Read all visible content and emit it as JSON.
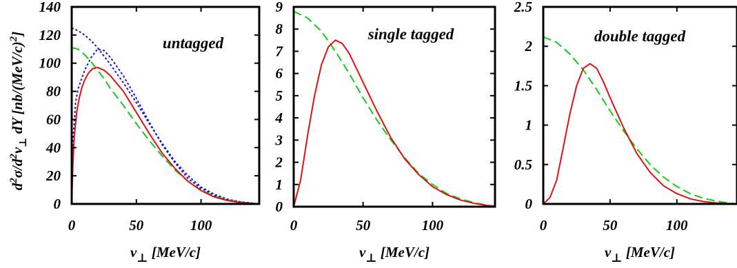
{
  "colors": {
    "red": "#dd1111",
    "green": "#11cc11",
    "blue": "#1111dd"
  },
  "chart_data": [
    {
      "type": "line",
      "panel_label": "untagged",
      "xlabel": "v⊥ [MeV/c]",
      "ylabel": "d²σ/d²v⊥ dY [nb/(MeV/c)²]",
      "xlim": [
        0,
        145
      ],
      "ylim": [
        0,
        140
      ],
      "x_ticks": [
        0,
        50,
        100
      ],
      "y_ticks": [
        0,
        20,
        40,
        60,
        80,
        100,
        120,
        140
      ],
      "series": [
        {
          "color": "blue",
          "style": "dotted",
          "x": [
            0,
            1,
            3,
            5,
            10,
            15,
            20,
            25,
            30,
            40,
            50,
            60,
            70,
            80,
            90,
            100,
            110,
            120,
            130,
            140,
            145
          ],
          "y": [
            0,
            45,
            72,
            82,
            95,
            104,
            110,
            109,
            104,
            91,
            75,
            58,
            42,
            29,
            18,
            11,
            6,
            3,
            1.5,
            0.5,
            0
          ]
        },
        {
          "color": "blue",
          "style": "dotted",
          "x": [
            0,
            5,
            10,
            15,
            20,
            25,
            30,
            40,
            50,
            60,
            70,
            80,
            90,
            100,
            110,
            120,
            130,
            140,
            145
          ],
          "y": [
            125,
            123,
            120,
            116,
            111,
            105,
            99,
            86,
            72,
            57,
            43,
            30,
            20,
            12,
            7,
            3.5,
            1.5,
            0.5,
            0
          ]
        },
        {
          "color": "green",
          "style": "dashed",
          "x": [
            0,
            5,
            10,
            15,
            20,
            25,
            30,
            40,
            50,
            60,
            70,
            80,
            90,
            100,
            110,
            120,
            130,
            140,
            145
          ],
          "y": [
            111,
            110,
            106,
            101,
            95,
            89,
            82,
            70,
            57,
            45,
            34,
            24,
            16,
            10,
            5.5,
            2.8,
            1.2,
            0.4,
            0
          ]
        },
        {
          "color": "red",
          "style": "solid",
          "x": [
            0,
            1,
            2,
            4,
            6,
            8,
            10,
            13,
            16,
            20,
            25,
            30,
            40,
            50,
            60,
            70,
            80,
            90,
            100,
            110,
            120,
            130,
            140,
            145
          ],
          "y": [
            0,
            30,
            48,
            66,
            76,
            83,
            88,
            93,
            96,
            97,
            95,
            91,
            80,
            65,
            50,
            36,
            25,
            16,
            9.5,
            5,
            2.5,
            1,
            0.3,
            0
          ]
        }
      ]
    },
    {
      "type": "line",
      "panel_label": "single tagged",
      "xlabel": "v⊥ [MeV/c]",
      "xlim": [
        0,
        145
      ],
      "ylim": [
        0,
        9
      ],
      "x_ticks": [
        0,
        50,
        100
      ],
      "y_ticks": [
        0,
        1,
        2,
        3,
        4,
        5,
        6,
        7,
        8,
        9
      ],
      "series": [
        {
          "color": "green",
          "style": "dashed",
          "x": [
            0,
            10,
            20,
            30,
            40,
            50,
            60,
            70,
            80,
            90,
            100,
            110,
            120,
            130,
            140,
            145
          ],
          "y": [
            8.8,
            8.5,
            7.9,
            7.0,
            6.0,
            4.9,
            3.9,
            3.0,
            2.2,
            1.5,
            1.0,
            0.6,
            0.35,
            0.18,
            0.06,
            0.03
          ]
        },
        {
          "color": "red",
          "style": "solid",
          "x": [
            0,
            5,
            10,
            15,
            20,
            25,
            30,
            35,
            40,
            50,
            60,
            70,
            80,
            90,
            100,
            110,
            120,
            130,
            140,
            145
          ],
          "y": [
            0,
            1.2,
            3.2,
            5.0,
            6.4,
            7.2,
            7.5,
            7.35,
            6.9,
            5.6,
            4.3,
            3.1,
            2.15,
            1.45,
            0.9,
            0.55,
            0.3,
            0.15,
            0.05,
            0.02
          ]
        }
      ]
    },
    {
      "type": "line",
      "panel_label": "double tagged",
      "xlabel": "v⊥ [MeV/c]",
      "xlim": [
        0,
        145
      ],
      "ylim": [
        0,
        2.5
      ],
      "x_ticks": [
        0,
        50,
        100
      ],
      "y_ticks": [
        0,
        0.5,
        1,
        1.5,
        2,
        2.5
      ],
      "y_tick_labels": [
        "0",
        "0.5",
        "1",
        "1.5",
        "2",
        "2.5"
      ],
      "series": [
        {
          "color": "green",
          "style": "dashed",
          "x": [
            0,
            10,
            20,
            30,
            40,
            50,
            60,
            70,
            80,
            90,
            100,
            110,
            120,
            130,
            140,
            145
          ],
          "y": [
            2.12,
            2.05,
            1.9,
            1.7,
            1.45,
            1.18,
            0.93,
            0.7,
            0.5,
            0.34,
            0.22,
            0.13,
            0.07,
            0.035,
            0.01,
            0
          ]
        },
        {
          "color": "red",
          "style": "solid",
          "x": [
            0,
            5,
            10,
            15,
            20,
            25,
            30,
            35,
            40,
            45,
            50,
            60,
            70,
            80,
            90,
            100,
            110,
            120,
            130,
            140,
            145
          ],
          "y": [
            0,
            0.08,
            0.3,
            0.72,
            1.15,
            1.5,
            1.72,
            1.78,
            1.72,
            1.55,
            1.35,
            0.97,
            0.64,
            0.4,
            0.23,
            0.13,
            0.065,
            0.03,
            0.012,
            0.004,
            0
          ]
        }
      ]
    }
  ]
}
